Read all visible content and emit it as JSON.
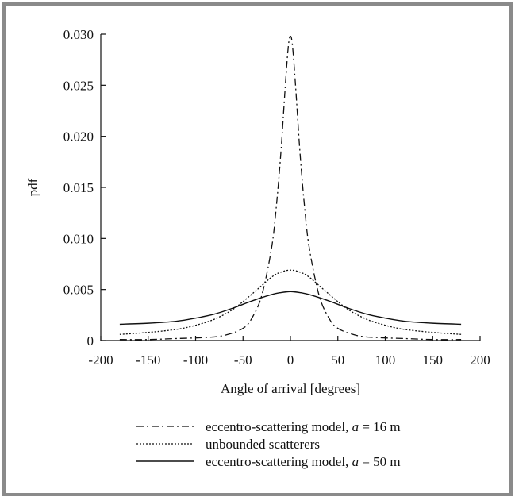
{
  "chart_data": {
    "type": "line",
    "xlabel": "Angle of arrival [degrees]",
    "ylabel": "pdf",
    "xlim": [
      -200,
      200
    ],
    "ylim": [
      0,
      0.03
    ],
    "x_ticks": [
      -200,
      -150,
      -100,
      -50,
      0,
      50,
      100,
      150,
      200
    ],
    "x_tick_labels": [
      "-200",
      "-150",
      "-100",
      "-50",
      "0",
      "50",
      "100",
      "150",
      "200"
    ],
    "y_ticks": [
      0,
      0.005,
      0.01,
      0.015,
      0.02,
      0.025,
      0.03
    ],
    "y_tick_labels": [
      "0",
      "0.005",
      "0.010",
      "0.015",
      "0.020",
      "0.025",
      "0.030"
    ],
    "grid": false,
    "legend_position": "bottom",
    "series": [
      {
        "legend_prefix": "eccentro-scattering model, ",
        "legend_var": "a",
        "legend_suffix": " = 16 m",
        "style": "dash-dot",
        "color": "#111111",
        "x": [
          -180,
          -150,
          -120,
          -90,
          -70,
          -50,
          -40,
          -30,
          -20,
          -15,
          -10,
          -5,
          -2,
          0,
          2,
          5,
          10,
          15,
          20,
          30,
          40,
          50,
          70,
          90,
          120,
          150,
          180
        ],
        "values": [
          0.0001,
          0.0001,
          0.0002,
          0.0003,
          0.0005,
          0.0012,
          0.0023,
          0.0045,
          0.009,
          0.013,
          0.0185,
          0.0255,
          0.029,
          0.0298,
          0.029,
          0.0255,
          0.0185,
          0.013,
          0.009,
          0.0045,
          0.0023,
          0.0012,
          0.0005,
          0.0003,
          0.0002,
          0.0001,
          0.0001
        ]
      },
      {
        "legend_prefix": "unbounded scatterers",
        "legend_var": "",
        "legend_suffix": "",
        "style": "dotted",
        "color": "#111111",
        "x": [
          -180,
          -150,
          -120,
          -100,
          -80,
          -60,
          -40,
          -20,
          -10,
          0,
          10,
          20,
          40,
          60,
          80,
          100,
          120,
          150,
          180
        ],
        "values": [
          0.0006,
          0.0008,
          0.0011,
          0.0015,
          0.0021,
          0.0031,
          0.0046,
          0.0062,
          0.0067,
          0.0069,
          0.0067,
          0.0062,
          0.0046,
          0.0031,
          0.0021,
          0.0015,
          0.0011,
          0.0008,
          0.0006
        ]
      },
      {
        "legend_prefix": "eccentro-scattering model, ",
        "legend_var": "a",
        "legend_suffix": " = 50 m",
        "style": "solid",
        "color": "#111111",
        "x": [
          -180,
          -150,
          -120,
          -100,
          -80,
          -60,
          -40,
          -20,
          -10,
          0,
          10,
          20,
          40,
          60,
          80,
          100,
          120,
          150,
          180
        ],
        "values": [
          0.0016,
          0.0017,
          0.0019,
          0.0022,
          0.0026,
          0.0032,
          0.0039,
          0.0045,
          0.0047,
          0.0048,
          0.0047,
          0.0045,
          0.0039,
          0.0032,
          0.0026,
          0.0022,
          0.0019,
          0.0017,
          0.0016
        ]
      }
    ]
  }
}
